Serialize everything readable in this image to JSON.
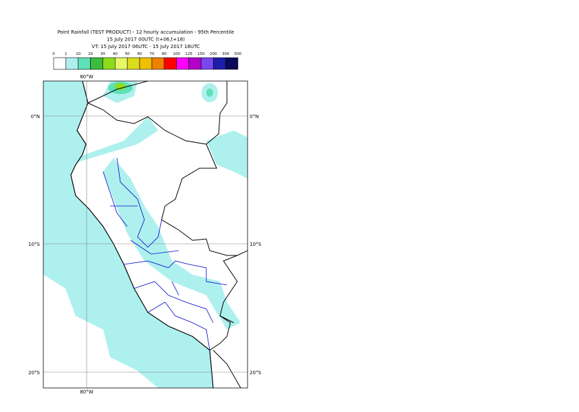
{
  "header": {
    "title_lines": [
      "Point Rainfall (TEST PRODUCT) - 12 hourly accumulation - 95th Percentile",
      "15 July 2017 00UTC (t+06,t+18)",
      "VT: 15 July 2017 06UTC - 15 July 2017 18UTC"
    ]
  },
  "legend": {
    "labels": [
      "0",
      "1",
      "10",
      "20",
      "30",
      "40",
      "50",
      "60",
      "70",
      "80",
      "100",
      "125",
      "150",
      "200",
      "300",
      "500"
    ],
    "colors": [
      "#ffffff",
      "#aef0ee",
      "#5ee0b8",
      "#3cbc3c",
      "#8cdc1c",
      "#e6f86a",
      "#dcdc1e",
      "#f0c000",
      "#f08000",
      "#ff0000",
      "#ff00ff",
      "#b400c8",
      "#7a46f0",
      "#1e1eaa",
      "#0a0a5a"
    ]
  },
  "map": {
    "lon_labels": [
      "80°W"
    ],
    "lat_labels": [
      "0°N",
      "10°S",
      "20°S"
    ]
  }
}
